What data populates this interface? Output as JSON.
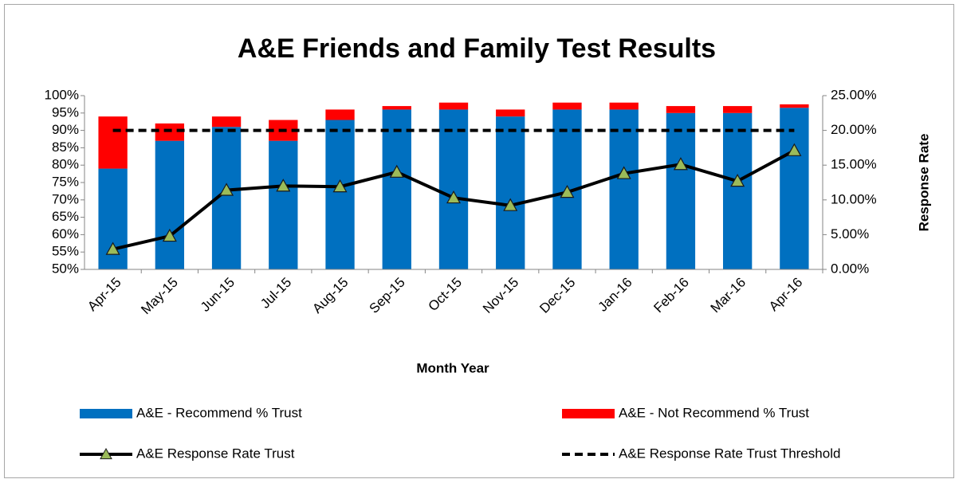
{
  "chart_data": {
    "type": "bar",
    "title": "A&E Friends and Family Test Results",
    "x_label": "Month Year",
    "y2_label": "Response Rate",
    "categories": [
      "Apr-15",
      "May-15",
      "Jun-15",
      "Jul-15",
      "Aug-15",
      "Sep-15",
      "Oct-15",
      "Nov-15",
      "Dec-15",
      "Jan-16",
      "Feb-16",
      "Mar-16",
      "Apr-16"
    ],
    "stacked": true,
    "series": [
      {
        "name": "A&E - Recommend % Trust",
        "type": "bar",
        "color": "#0070c0",
        "values": [
          79,
          87,
          91,
          87,
          93,
          96,
          96,
          94,
          96,
          96,
          95,
          95,
          96.5
        ]
      },
      {
        "name": "A&E - Not Recommend % Trust",
        "type": "bar",
        "color": "#ff0000",
        "values": [
          15,
          5,
          3,
          6,
          3,
          1,
          2,
          2,
          2,
          2,
          2,
          2,
          1
        ]
      },
      {
        "name": "A&E Response Rate Trust",
        "type": "line",
        "axis": "y2",
        "color": "#000000",
        "marker": "triangle",
        "marker_color": "#9bbb59",
        "values": [
          2.9,
          4.8,
          11.4,
          12.0,
          11.9,
          14.0,
          10.3,
          9.2,
          11.1,
          13.8,
          15.1,
          12.7,
          17.1
        ]
      },
      {
        "name": "A&E Response Rate Trust Threshold",
        "type": "line",
        "axis": "y2",
        "color": "#000000",
        "dashed": true,
        "values": [
          20,
          20,
          20,
          20,
          20,
          20,
          20,
          20,
          20,
          20,
          20,
          20,
          20
        ]
      }
    ],
    "ylim": [
      50,
      100
    ],
    "yticks": [
      {
        "value": 50,
        "label": "50%"
      },
      {
        "value": 55,
        "label": "55%"
      },
      {
        "value": 60,
        "label": "60%"
      },
      {
        "value": 65,
        "label": "65%"
      },
      {
        "value": 70,
        "label": "70%"
      },
      {
        "value": 75,
        "label": "75%"
      },
      {
        "value": 80,
        "label": "80%"
      },
      {
        "value": 85,
        "label": "85%"
      },
      {
        "value": 90,
        "label": "90%"
      },
      {
        "value": 95,
        "label": "95%"
      },
      {
        "value": 100,
        "label": "100%"
      }
    ],
    "y2lim": [
      0,
      25
    ],
    "y2ticks": [
      {
        "value": 0,
        "label": "0.00%"
      },
      {
        "value": 5,
        "label": "5.00%"
      },
      {
        "value": 10,
        "label": "10.00%"
      },
      {
        "value": 15,
        "label": "15.00%"
      },
      {
        "value": 20,
        "label": "20.00%"
      },
      {
        "value": 25,
        "label": "25.00%"
      }
    ],
    "grid": false,
    "legend": "bottom"
  }
}
